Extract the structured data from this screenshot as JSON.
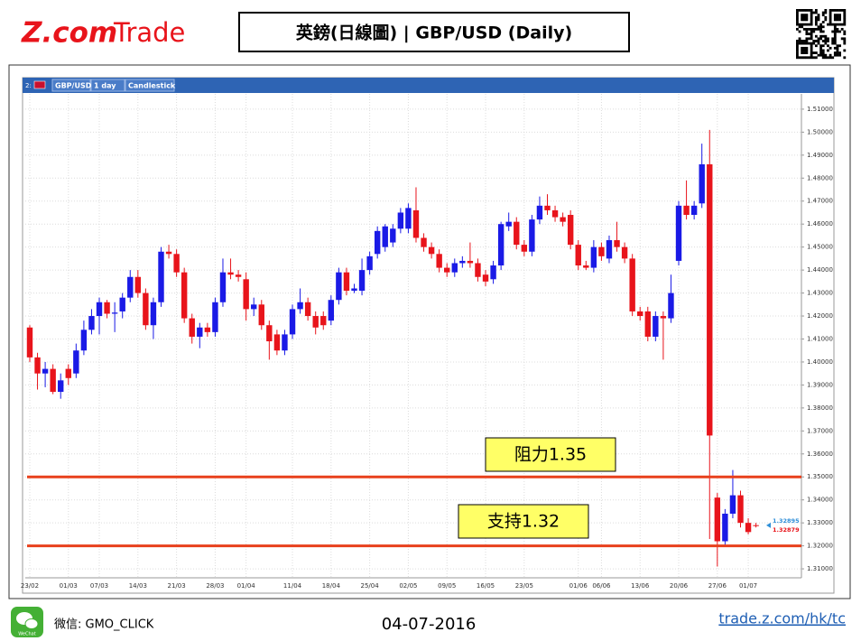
{
  "header": {
    "logo_main": "Z.com",
    "logo_sub": "Trade",
    "title": "英鎊(日線圖) | GBP/USD  (Daily)"
  },
  "toolbar": [
    "2:",
    "GBP/USD",
    "1 day",
    "Candlestick"
  ],
  "footer": {
    "wechat_icon": "WeChat",
    "wechat": "微信: GMO_CLICK",
    "date": "04-07-2016",
    "link": "trade.z.com/hk/tc"
  },
  "chart_data": {
    "type": "candlestick",
    "up_color": "#1a1ae6",
    "down_color": "#e8141b",
    "grid": true,
    "categories": [
      "23/02",
      null,
      null,
      null,
      null,
      "01/03",
      null,
      null,
      null,
      "07/03",
      null,
      null,
      null,
      null,
      "14/03",
      null,
      null,
      null,
      null,
      "21/03",
      null,
      null,
      null,
      null,
      "28/03",
      null,
      null,
      null,
      "01/04",
      null,
      null,
      null,
      null,
      null,
      "11/04",
      null,
      null,
      null,
      null,
      "18/04",
      null,
      null,
      null,
      null,
      "25/04",
      null,
      null,
      null,
      null,
      "02/05",
      null,
      null,
      null,
      null,
      "09/05",
      null,
      null,
      null,
      null,
      "16/05",
      null,
      null,
      null,
      null,
      "23/05",
      null,
      null,
      null,
      null,
      null,
      null,
      "01/06",
      null,
      null,
      "06/06",
      null,
      null,
      null,
      null,
      "13/06",
      null,
      null,
      null,
      null,
      "20/06",
      null,
      null,
      null,
      null,
      "27/06",
      null,
      null,
      null,
      "01/07",
      null
    ],
    "open": [
      1.415,
      1.402,
      1.395,
      1.397,
      1.387,
      1.397,
      1.395,
      1.405,
      1.414,
      1.42,
      1.426,
      1.421,
      1.422,
      1.428,
      1.437,
      1.43,
      1.416,
      1.426,
      1.448,
      1.447,
      1.439,
      1.419,
      1.411,
      1.415,
      1.413,
      1.426,
      1.439,
      1.438,
      1.436,
      1.423,
      1.425,
      1.416,
      1.412,
      1.405,
      1.412,
      1.423,
      1.426,
      1.42,
      1.42,
      1.418,
      1.427,
      1.439,
      1.431,
      1.431,
      1.44,
      1.447,
      1.45,
      1.452,
      1.458,
      1.458,
      1.466,
      1.454,
      1.45,
      1.447,
      1.441,
      1.439,
      1.443,
      1.444,
      1.443,
      1.438,
      1.436,
      1.442,
      1.459,
      1.461,
      1.451,
      1.448,
      1.462,
      1.468,
      1.466,
      1.463,
      1.464,
      1.451,
      1.442,
      1.441,
      1.45,
      1.445,
      1.453,
      1.45,
      1.445,
      1.422,
      1.422,
      1.411,
      1.42,
      1.419,
      1.444,
      1.468,
      1.464,
      1.469,
      1.486,
      1.341,
      1.322,
      1.334,
      1.342,
      1.33,
      1.329
    ],
    "high": [
      1.416,
      1.404,
      1.4,
      1.399,
      1.395,
      1.399,
      1.408,
      1.418,
      1.423,
      1.428,
      1.427,
      1.426,
      1.43,
      1.44,
      1.44,
      1.432,
      1.428,
      1.45,
      1.451,
      1.449,
      1.441,
      1.421,
      1.417,
      1.417,
      1.428,
      1.445,
      1.445,
      1.44,
      1.439,
      1.428,
      1.427,
      1.418,
      1.414,
      1.414,
      1.425,
      1.432,
      1.428,
      1.422,
      1.422,
      1.429,
      1.441,
      1.441,
      1.434,
      1.445,
      1.448,
      1.459,
      1.46,
      1.46,
      1.467,
      1.469,
      1.476,
      1.456,
      1.452,
      1.449,
      1.443,
      1.445,
      1.446,
      1.452,
      1.445,
      1.44,
      1.444,
      1.461,
      1.465,
      1.463,
      1.453,
      1.464,
      1.472,
      1.473,
      1.468,
      1.465,
      1.466,
      1.453,
      1.444,
      1.453,
      1.452,
      1.455,
      1.461,
      1.452,
      1.447,
      1.424,
      1.424,
      1.422,
      1.422,
      1.438,
      1.47,
      1.479,
      1.47,
      1.495,
      1.501,
      1.343,
      1.336,
      1.353,
      1.344,
      1.332,
      1.33
    ],
    "low": [
      1.4,
      1.388,
      1.389,
      1.386,
      1.384,
      1.39,
      1.393,
      1.403,
      1.412,
      1.412,
      1.419,
      1.413,
      1.419,
      1.426,
      1.428,
      1.414,
      1.41,
      1.424,
      1.445,
      1.437,
      1.417,
      1.408,
      1.406,
      1.411,
      1.411,
      1.424,
      1.436,
      1.435,
      1.418,
      1.42,
      1.414,
      1.401,
      1.403,
      1.403,
      1.41,
      1.421,
      1.418,
      1.412,
      1.414,
      1.416,
      1.425,
      1.429,
      1.43,
      1.429,
      1.438,
      1.445,
      1.448,
      1.45,
      1.456,
      1.456,
      1.452,
      1.448,
      1.445,
      1.439,
      1.437,
      1.437,
      1.441,
      1.441,
      1.435,
      1.433,
      1.434,
      1.44,
      1.457,
      1.449,
      1.446,
      1.446,
      1.46,
      1.464,
      1.461,
      1.459,
      1.449,
      1.44,
      1.44,
      1.439,
      1.444,
      1.443,
      1.448,
      1.443,
      1.42,
      1.418,
      1.409,
      1.409,
      1.401,
      1.417,
      1.442,
      1.462,
      1.462,
      1.467,
      1.323,
      1.311,
      1.32,
      1.332,
      1.328,
      1.325,
      1.328
    ],
    "close": [
      1.402,
      1.395,
      1.397,
      1.387,
      1.392,
      1.393,
      1.405,
      1.414,
      1.42,
      1.426,
      1.421,
      1.4215,
      1.428,
      1.437,
      1.43,
      1.416,
      1.426,
      1.448,
      1.447,
      1.439,
      1.419,
      1.411,
      1.415,
      1.413,
      1.426,
      1.439,
      1.438,
      1.437,
      1.423,
      1.425,
      1.416,
      1.409,
      1.405,
      1.412,
      1.423,
      1.426,
      1.42,
      1.415,
      1.416,
      1.427,
      1.439,
      1.431,
      1.432,
      1.44,
      1.446,
      1.457,
      1.459,
      1.458,
      1.465,
      1.467,
      1.454,
      1.45,
      1.447,
      1.441,
      1.439,
      1.443,
      1.444,
      1.443,
      1.437,
      1.435,
      1.442,
      1.46,
      1.461,
      1.451,
      1.448,
      1.462,
      1.468,
      1.466,
      1.463,
      1.461,
      1.451,
      1.442,
      1.441,
      1.45,
      1.446,
      1.453,
      1.45,
      1.445,
      1.422,
      1.42,
      1.411,
      1.42,
      1.419,
      1.43,
      1.468,
      1.464,
      1.468,
      1.486,
      1.368,
      1.322,
      1.334,
      1.342,
      1.33,
      1.326,
      1.3288
    ],
    "ylim": [
      1.3061,
      1.5135
    ],
    "yticks": [
      {
        "value": 1.31,
        "label": "1.31000"
      },
      {
        "value": 1.32,
        "label": "1.32000"
      },
      {
        "value": 1.33,
        "label": "1.33000"
      },
      {
        "value": 1.34,
        "label": "1.34000"
      },
      {
        "value": 1.35,
        "label": "1.35000"
      },
      {
        "value": 1.36,
        "label": "1.36000"
      },
      {
        "value": 1.37,
        "label": "1.37000"
      },
      {
        "value": 1.38,
        "label": "1.38000"
      },
      {
        "value": 1.39,
        "label": "1.39000"
      },
      {
        "value": 1.4,
        "label": "1.40000"
      },
      {
        "value": 1.41,
        "label": "1.41000"
      },
      {
        "value": 1.42,
        "label": "1.42000"
      },
      {
        "value": 1.43,
        "label": "1.43000"
      },
      {
        "value": 1.44,
        "label": "1.44000"
      },
      {
        "value": 1.45,
        "label": "1.45000"
      },
      {
        "value": 1.46,
        "label": "1.46000"
      },
      {
        "value": 1.47,
        "label": "1.47000"
      },
      {
        "value": 1.48,
        "label": "1.48000"
      },
      {
        "value": 1.49,
        "label": "1.49000"
      },
      {
        "value": 1.5,
        "label": "1.50000"
      },
      {
        "value": 1.51,
        "label": "1.51000"
      }
    ],
    "levels": [
      {
        "value": 1.35,
        "label": "阻力1.35",
        "color": "#e8401c"
      },
      {
        "value": 1.32,
        "label": "支持1.32",
        "color": "#e8401c"
      }
    ],
    "price_tags": [
      {
        "value": 1.32895,
        "color": "#2f8fd8"
      },
      {
        "value": 1.32879,
        "color": "#e8141b"
      }
    ]
  }
}
